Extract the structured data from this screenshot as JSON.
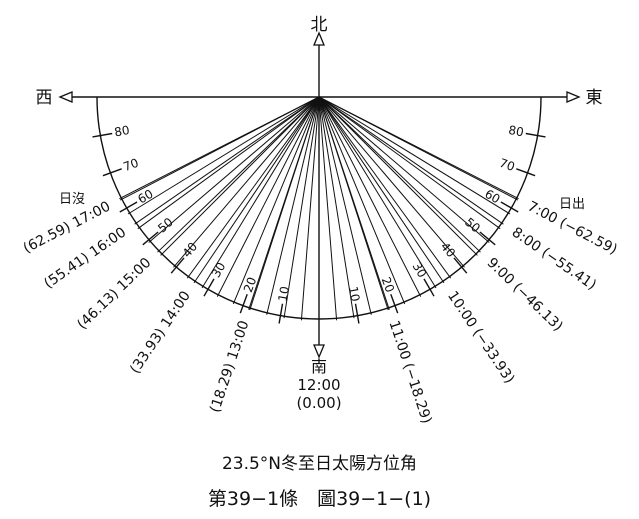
{
  "directions": {
    "north": "北",
    "south": "南",
    "west": "西",
    "east": "東"
  },
  "sunset_label": "日沒",
  "sunrise_label": "日出",
  "noon": {
    "time": "12:00",
    "azimuth": "(0.00)"
  },
  "afternoon_hours": [
    {
      "time": "13:00",
      "azimuth": "(18.29)"
    },
    {
      "time": "14:00",
      "azimuth": "(33.93)"
    },
    {
      "time": "15:00",
      "azimuth": "(46.13)"
    },
    {
      "time": "16:00",
      "azimuth": "(55.41)"
    },
    {
      "time": "17:00",
      "azimuth": "(62.59)"
    }
  ],
  "morning_hours": [
    {
      "time": "11:00",
      "azimuth": "(−18.29)"
    },
    {
      "time": "10:00",
      "azimuth": "(−33.93)"
    },
    {
      "time": "9:00",
      "azimuth": "(−46.13)"
    },
    {
      "time": "8:00",
      "azimuth": "(−55.41)"
    },
    {
      "time": "7:00",
      "azimuth": "(−62.59)"
    }
  ],
  "azimuth_scale": [
    "10",
    "20",
    "30",
    "40",
    "50",
    "60",
    "70",
    "80"
  ],
  "caption": {
    "subtitle": "23.5°N冬至日太陽方位角",
    "figure_number": "第39−1條　圖39−1−(1)"
  }
}
